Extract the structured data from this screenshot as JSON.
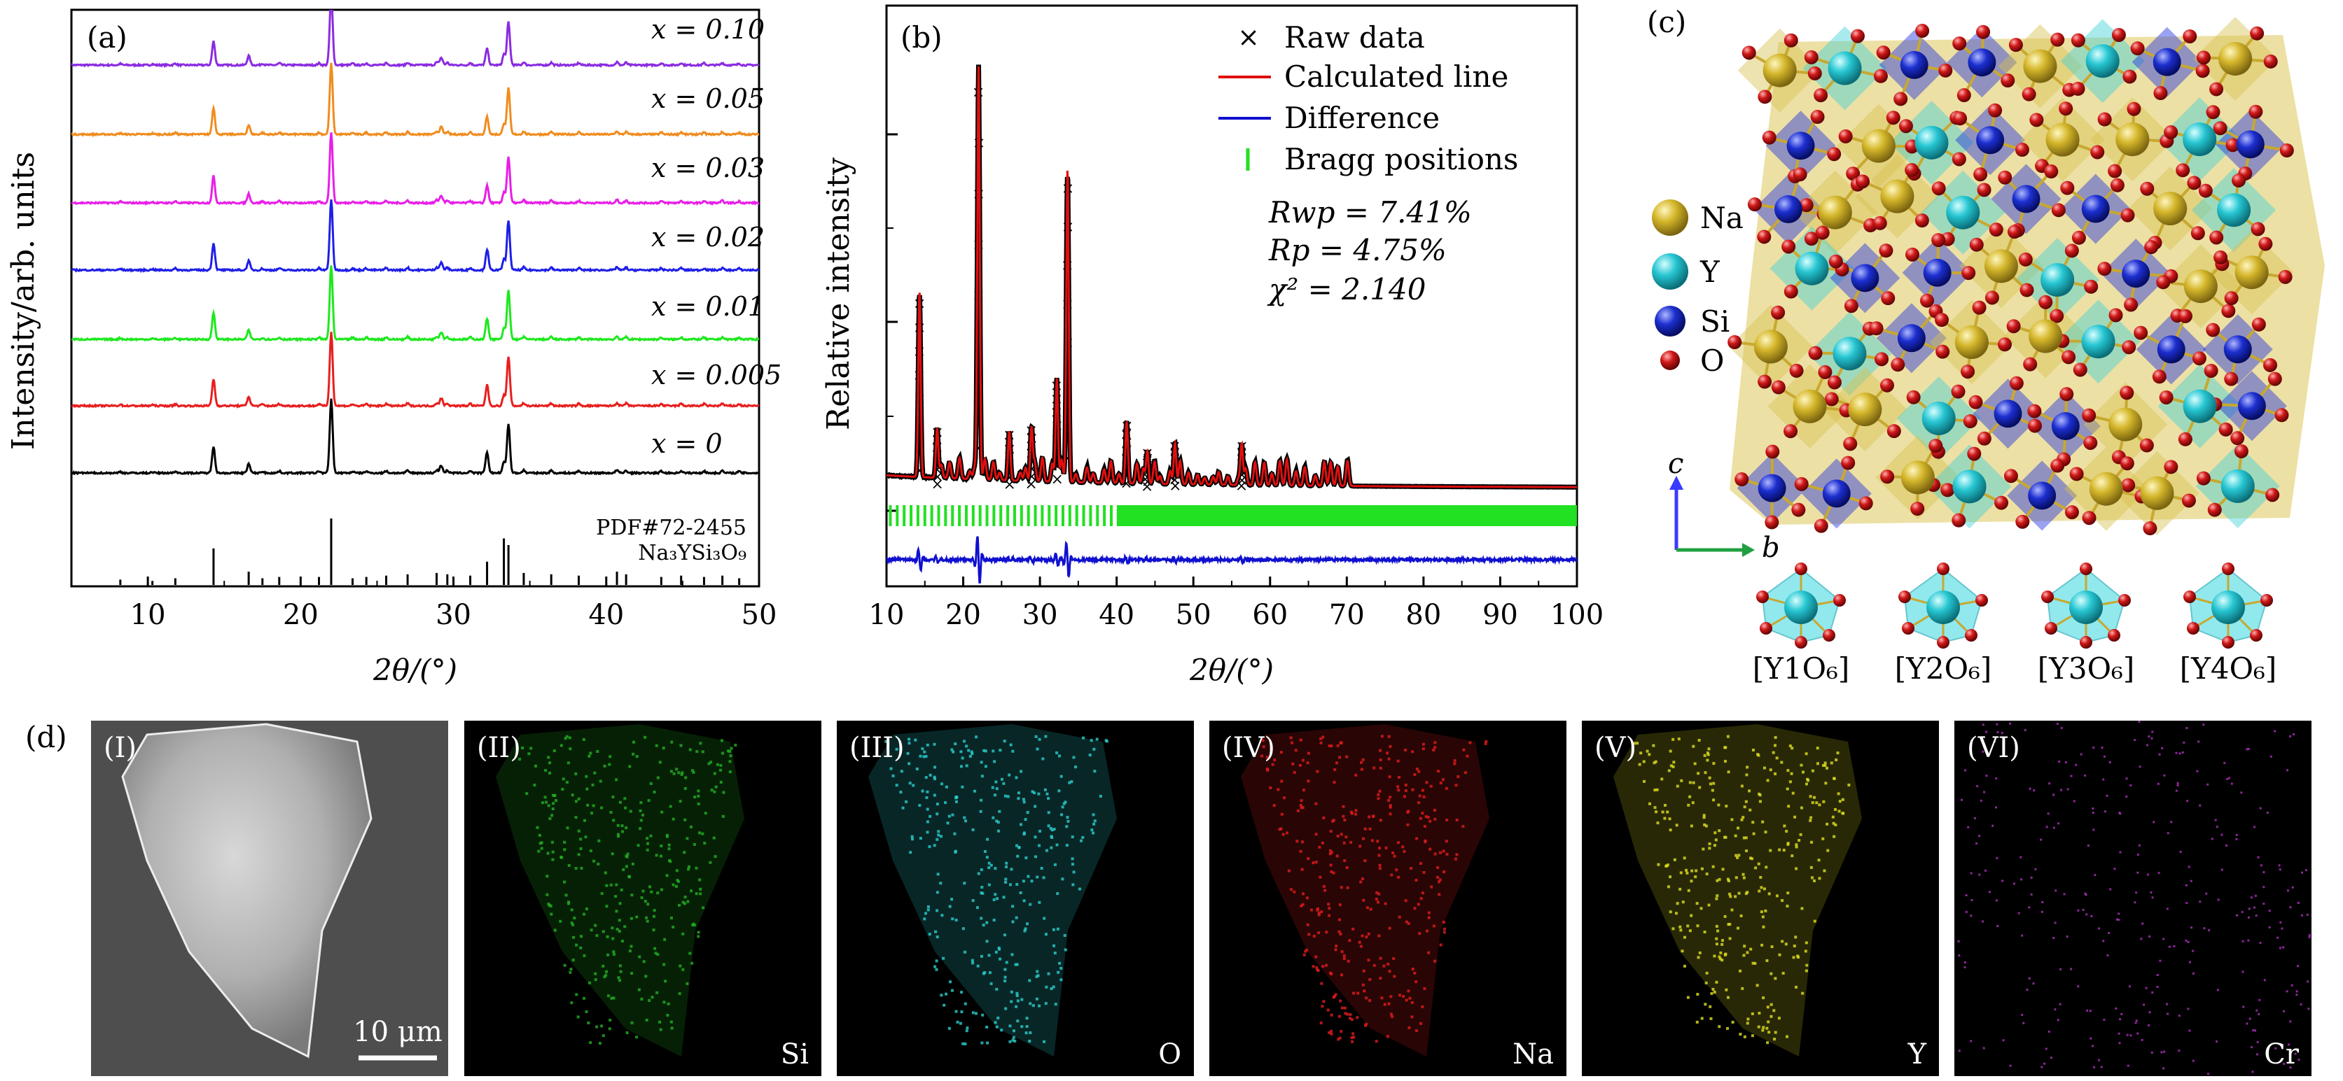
{
  "panel_a": {
    "tag": "(a)",
    "ylabel": "Intensity/arb. units",
    "xlabel": "2θ/(°)",
    "ref_label_1": "PDF#72-2455",
    "ref_label_2": "Na₃YSi₃O₉"
  },
  "panel_b": {
    "tag": "(b)",
    "ylabel": "Relative intensity",
    "xlabel": "2θ/(°)",
    "legend": [
      "Raw data",
      "Calculated line",
      "Difference",
      "Bragg positions"
    ],
    "rwp": "Rwp = 7.41%",
    "rp": "Rp = 4.75%",
    "chi2": "χ² = 2.140"
  },
  "panel_c": {
    "tag": "(c)",
    "legend": [
      {
        "name": "Na",
        "color": "#d4b62a"
      },
      {
        "name": "Y",
        "color": "#26c6d2"
      },
      {
        "name": "Si",
        "color": "#1c2fd0"
      },
      {
        "name": "O",
        "color": "#d01818"
      }
    ],
    "axis_c": "c",
    "axis_b": "b",
    "octahedra": [
      "[Y1O₆]",
      "[Y2O₆]",
      "[Y3O₆]",
      "[Y4O₆]"
    ]
  },
  "panel_d": {
    "tag": "(d)",
    "scale_bar": "10 μm",
    "images": [
      {
        "roman": "(I)",
        "element": "",
        "color": "#9a9a9a"
      },
      {
        "roman": "(II)",
        "element": "Si",
        "color": "#22b022"
      },
      {
        "roman": "(III)",
        "element": "O",
        "color": "#2ad0d0"
      },
      {
        "roman": "(IV)",
        "element": "Na",
        "color": "#e21c1c"
      },
      {
        "roman": "(V)",
        "element": "Y",
        "color": "#e0e022"
      },
      {
        "roman": "(VI)",
        "element": "Cr",
        "color": "#b030c0"
      }
    ]
  },
  "chart_data": [
    {
      "type": "line",
      "title": "(a)",
      "xlabel": "2θ/(°)",
      "ylabel": "Intensity/arb. units",
      "xlim": [
        5,
        50
      ],
      "xticks": [
        10,
        20,
        30,
        40,
        50
      ],
      "series": [
        {
          "name": "x = 0.10",
          "color": "#8a2be2",
          "peaks": [
            [
              14.3,
              0.25
            ],
            [
              16.6,
              0.1
            ],
            [
              22.0,
              0.9
            ],
            [
              32.2,
              0.18
            ],
            [
              33.6,
              0.55
            ],
            [
              29.2,
              0.12
            ]
          ]
        },
        {
          "name": "x = 0.05",
          "color": "#f08c1e",
          "peaks": [
            [
              14.3,
              0.3
            ],
            [
              16.6,
              0.1
            ],
            [
              22.0,
              0.9
            ],
            [
              32.2,
              0.2
            ],
            [
              33.6,
              0.6
            ],
            [
              29.2,
              0.12
            ]
          ]
        },
        {
          "name": "x = 0.03",
          "color": "#e81ee8",
          "peaks": [
            [
              14.3,
              0.3
            ],
            [
              16.6,
              0.1
            ],
            [
              22.0,
              0.9
            ],
            [
              32.2,
              0.2
            ],
            [
              33.6,
              0.6
            ],
            [
              29.2,
              0.12
            ]
          ]
        },
        {
          "name": "x = 0.02",
          "color": "#1e1ee8",
          "peaks": [
            [
              14.3,
              0.3
            ],
            [
              16.6,
              0.1
            ],
            [
              22.0,
              0.9
            ],
            [
              32.2,
              0.25
            ],
            [
              33.6,
              0.65
            ],
            [
              29.2,
              0.12
            ]
          ]
        },
        {
          "name": "x = 0.01",
          "color": "#1ee81e",
          "peaks": [
            [
              14.3,
              0.3
            ],
            [
              16.6,
              0.1
            ],
            [
              22.0,
              0.95
            ],
            [
              32.2,
              0.25
            ],
            [
              33.6,
              0.65
            ],
            [
              29.2,
              0.12
            ]
          ]
        },
        {
          "name": "x = 0.005",
          "color": "#e81e1e",
          "peaks": [
            [
              14.3,
              0.3
            ],
            [
              16.6,
              0.1
            ],
            [
              22.0,
              0.95
            ],
            [
              32.2,
              0.25
            ],
            [
              33.6,
              0.65
            ],
            [
              29.2,
              0.12
            ]
          ]
        },
        {
          "name": "x = 0",
          "color": "#000000",
          "peaks": [
            [
              14.3,
              0.3
            ],
            [
              16.6,
              0.1
            ],
            [
              22.0,
              0.95
            ],
            [
              32.2,
              0.25
            ],
            [
              33.6,
              0.65
            ],
            [
              29.2,
              0.12
            ]
          ]
        }
      ],
      "reference": {
        "name": "PDF#72-2455 Na₃YSi₃O₉",
        "sticks": [
          [
            8.2,
            0.08
          ],
          [
            10.3,
            0.06
          ],
          [
            11.8,
            0.1
          ],
          [
            14.3,
            0.55
          ],
          [
            16.6,
            0.2
          ],
          [
            17.5,
            0.1
          ],
          [
            18.6,
            0.12
          ],
          [
            21.2,
            0.12
          ],
          [
            22.0,
            1.0
          ],
          [
            23.4,
            0.1
          ],
          [
            24.3,
            0.12
          ],
          [
            25.6,
            0.14
          ],
          [
            27.0,
            0.16
          ],
          [
            28.9,
            0.18
          ],
          [
            29.6,
            0.16
          ],
          [
            31.1,
            0.14
          ],
          [
            32.2,
            0.35
          ],
          [
            33.3,
            0.7
          ],
          [
            33.6,
            0.6
          ],
          [
            34.6,
            0.18
          ],
          [
            36.4,
            0.16
          ],
          [
            38.2,
            0.14
          ],
          [
            40.7,
            0.2
          ],
          [
            41.3,
            0.16
          ],
          [
            43.6,
            0.12
          ],
          [
            44.9,
            0.14
          ],
          [
            46.4,
            0.12
          ],
          [
            47.6,
            0.14
          ],
          [
            48.7,
            0.1
          ]
        ]
      }
    },
    {
      "type": "line",
      "title": "(b)",
      "xlabel": "2θ/(°)",
      "ylabel": "Relative intensity",
      "xlim": [
        10,
        100
      ],
      "xticks": [
        10,
        20,
        30,
        40,
        50,
        60,
        70,
        80,
        90,
        100
      ],
      "series": [
        {
          "name": "Raw data",
          "marker": "x",
          "color": "#000000",
          "peaks": [
            [
              14.3,
              0.45
            ],
            [
              16.6,
              0.12
            ],
            [
              22.0,
              1.0
            ],
            [
              26.0,
              0.1
            ],
            [
              28.9,
              0.13
            ],
            [
              32.2,
              0.25
            ],
            [
              33.6,
              0.72
            ],
            [
              41.3,
              0.12
            ],
            [
              44.0,
              0.08
            ],
            [
              47.6,
              0.1
            ],
            [
              56.3,
              0.1
            ]
          ]
        },
        {
          "name": "Calculated line",
          "color": "#e01010"
        },
        {
          "name": "Difference",
          "color": "#1010d0"
        },
        {
          "name": "Bragg positions",
          "color": "#22e022"
        }
      ],
      "annotations": {
        "Rwp": 7.41,
        "Rp": 4.75,
        "chi2": 2.14
      }
    }
  ]
}
